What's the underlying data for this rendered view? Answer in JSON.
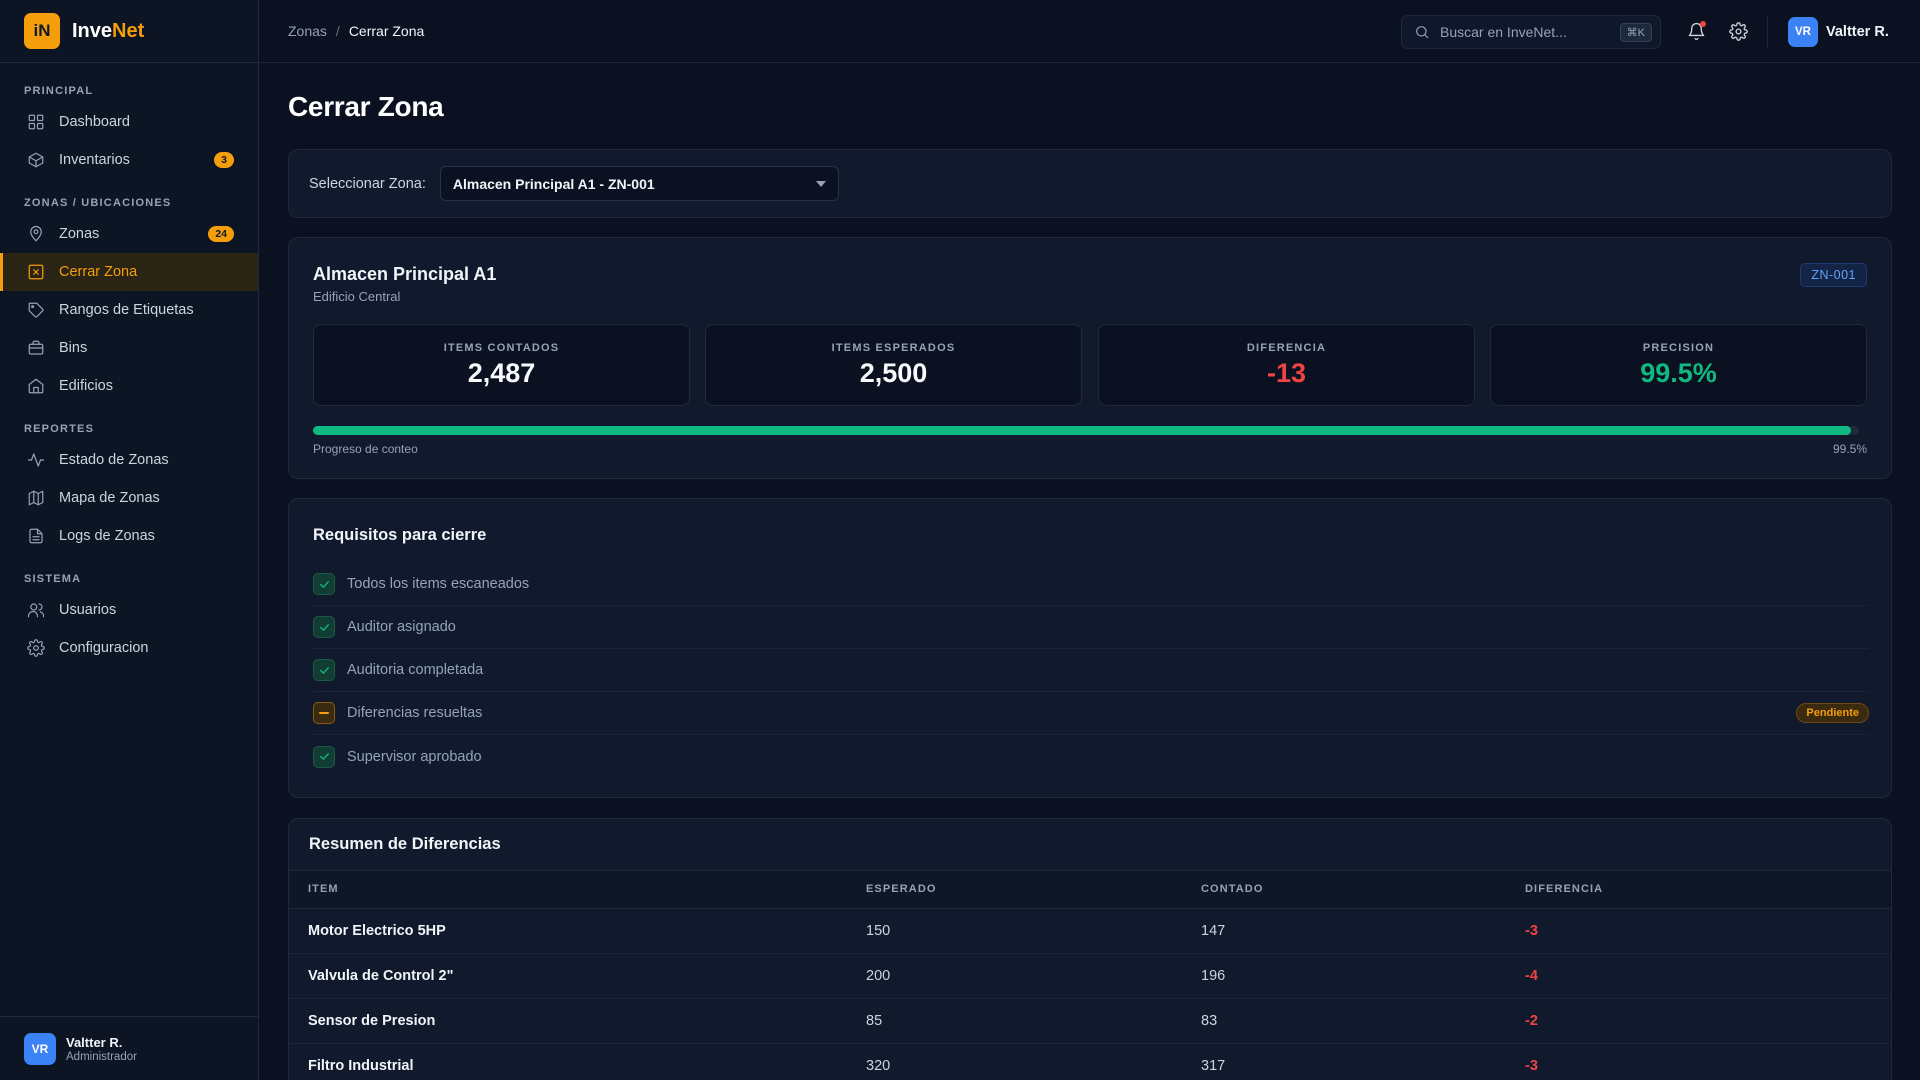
{
  "brand": {
    "logo": "iN",
    "name_main": "Inve",
    "name_accent": "Net"
  },
  "sidebar": {
    "sections": [
      {
        "title": "PRINCIPAL",
        "items": [
          {
            "label": "Dashboard",
            "icon": "grid-icon"
          },
          {
            "label": "Inventarios",
            "icon": "box-icon",
            "badge": "3"
          }
        ]
      },
      {
        "title": "ZONAS / UBICACIONES",
        "items": [
          {
            "label": "Zonas",
            "icon": "map-pin-icon",
            "badge": "24"
          },
          {
            "label": "Cerrar Zona",
            "icon": "close-square-icon",
            "active": true
          },
          {
            "label": "Rangos de Etiquetas",
            "icon": "tag-icon"
          },
          {
            "label": "Bins",
            "icon": "briefcase-icon"
          },
          {
            "label": "Edificios",
            "icon": "home-icon"
          }
        ]
      },
      {
        "title": "REPORTES",
        "items": [
          {
            "label": "Estado de Zonas",
            "icon": "activity-icon"
          },
          {
            "label": "Mapa de Zonas",
            "icon": "map-icon"
          },
          {
            "label": "Logs de Zonas",
            "icon": "file-icon"
          }
        ]
      },
      {
        "title": "SISTEMA",
        "items": [
          {
            "label": "Usuarios",
            "icon": "users-icon"
          },
          {
            "label": "Configuracion",
            "icon": "gear-icon"
          }
        ]
      }
    ],
    "user": {
      "initials": "VR",
      "name": "Valtter R.",
      "role": "Administrador"
    }
  },
  "topbar": {
    "breadcrumb": {
      "parent": "Zonas",
      "separator": "/",
      "current": "Cerrar Zona"
    },
    "search": {
      "placeholder": "Buscar en InveNet...",
      "shortcut": "⌘K"
    },
    "user": {
      "initials": "VR",
      "name": "Valtter R."
    }
  },
  "page": {
    "title": "Cerrar Zona"
  },
  "zone_select": {
    "label": "Seleccionar Zona:",
    "value": "Almacen Principal A1 - ZN-001"
  },
  "zone": {
    "name": "Almacen Principal A1",
    "building": "Edificio Central",
    "code": "ZN-001",
    "stats": [
      {
        "label": "ITEMS CONTADOS",
        "value": "2,487",
        "tone": "default"
      },
      {
        "label": "ITEMS ESPERADOS",
        "value": "2,500",
        "tone": "default"
      },
      {
        "label": "DIFERENCIA",
        "value": "-13",
        "tone": "neg"
      },
      {
        "label": "PRECISION",
        "value": "99.5%",
        "tone": "pos"
      }
    ],
    "progress": {
      "label": "Progreso de conteo",
      "percent_text": "99.5%",
      "value": 99.5
    }
  },
  "requirements": {
    "title": "Requisitos para cierre",
    "items": [
      {
        "label": "Todos los items escaneados",
        "status": "done"
      },
      {
        "label": "Auditor asignado",
        "status": "done"
      },
      {
        "label": "Auditoria completada",
        "status": "done"
      },
      {
        "label": "Diferencias resueltas",
        "status": "pending",
        "badge": "Pendiente"
      },
      {
        "label": "Supervisor aprobado",
        "status": "done"
      }
    ]
  },
  "differences": {
    "title": "Resumen de Diferencias",
    "columns": [
      "ITEM",
      "ESPERADO",
      "CONTADO",
      "DIFERENCIA"
    ],
    "rows": [
      [
        "Motor Electrico 5HP",
        "150",
        "147",
        "-3"
      ],
      [
        "Valvula de Control 2\"",
        "200",
        "196",
        "-4"
      ],
      [
        "Sensor de Presion",
        "85",
        "83",
        "-2"
      ],
      [
        "Filtro Industrial",
        "320",
        "317",
        "-3"
      ]
    ]
  },
  "colors": {
    "accent": "#f59e0b",
    "negative": "#ef4444",
    "positive": "#10b981",
    "info": "#3b82f6",
    "background": "#0b1120"
  }
}
